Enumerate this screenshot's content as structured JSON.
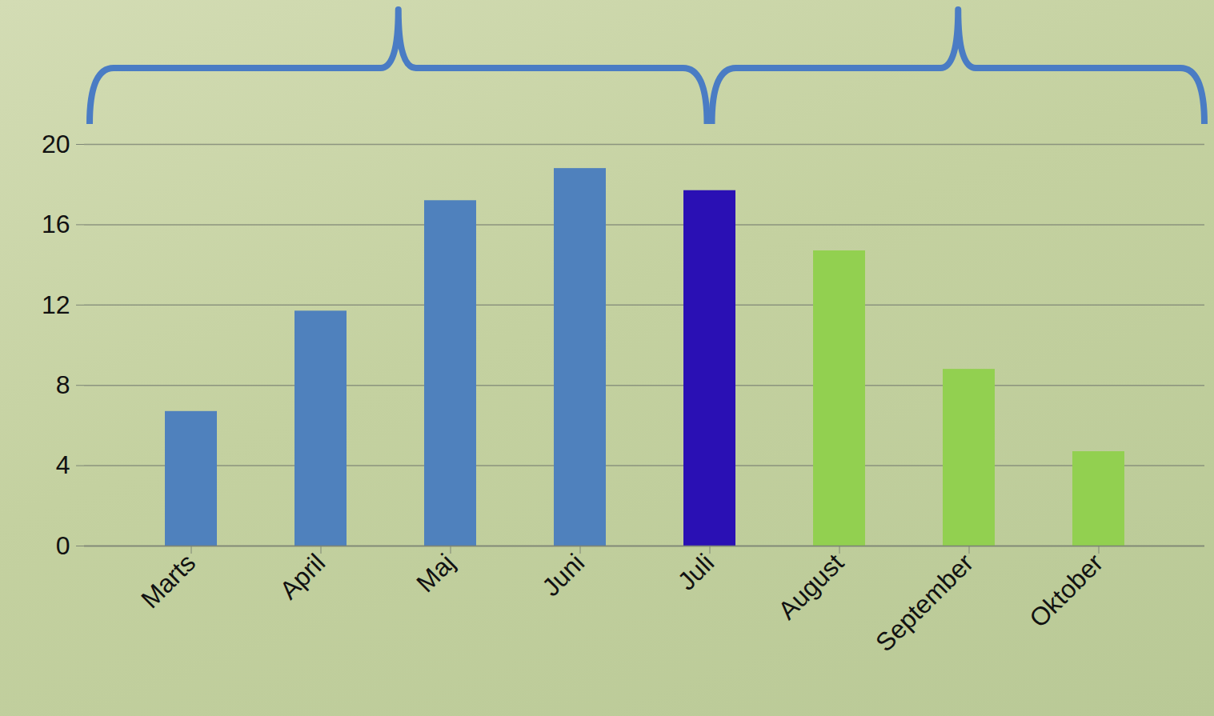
{
  "chart_data": {
    "type": "bar",
    "categories": [
      "Marts",
      "April",
      "Maj",
      "Juni",
      "Juli",
      "August",
      "September",
      "Oktober"
    ],
    "values": [
      6.7,
      11.7,
      17.2,
      18.8,
      17.7,
      14.7,
      8.8,
      4.7
    ],
    "colors": [
      "#4f81bd",
      "#4f81bd",
      "#4f81bd",
      "#4f81bd",
      "#2a10b4",
      "#92d050",
      "#92d050",
      "#92d050"
    ],
    "ylim": [
      0,
      20
    ],
    "yticks": [
      0,
      4,
      8,
      12,
      16,
      20
    ],
    "grid": true
  }
}
